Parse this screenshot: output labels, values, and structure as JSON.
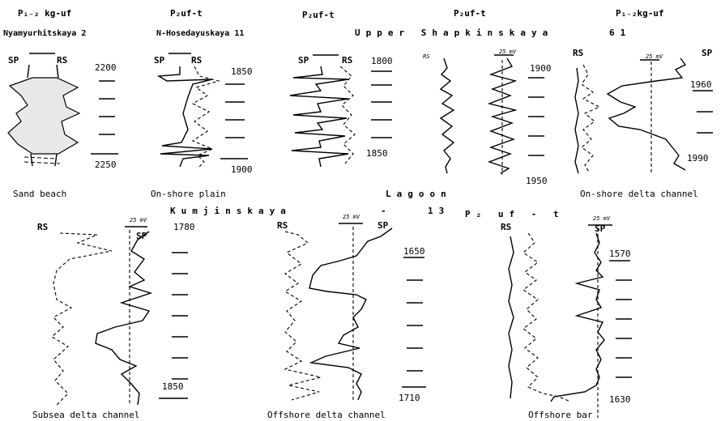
{
  "top_row": {
    "panels": [
      {
        "title": "P₁₋₂ kg-uf",
        "well": "Nyamyurhitskaya 2",
        "left_log": "SP",
        "right_log": "RS",
        "depth_top": "2200",
        "depth_bottom": "2250",
        "caption": "Sand beach"
      },
      {
        "title": "P₂uf-t",
        "well": "N-Hosedayuskaya 11",
        "left_log": "SP",
        "right_log": "RS",
        "depth_top": "1850",
        "depth_bottom": "1900",
        "caption": "On-shore plain"
      },
      {
        "title": "P₂uf-t",
        "well": "",
        "left_log": "SP",
        "right_log": "RS",
        "depth_top": "1800",
        "depth_bottom": "1850",
        "caption": ""
      },
      {
        "title": "P₂uf-t",
        "well": "",
        "left_log": "RS",
        "right_log": "25 mV",
        "depth_top": "1900",
        "depth_bottom": "1950",
        "caption": ""
      },
      {
        "title": "P₁₋₂kg-uf",
        "well": "",
        "left_log": "RS",
        "right_log": "SP",
        "scale": "25 mV",
        "depth_top": "1960",
        "depth_bottom": "1990",
        "caption": "On-shore delta channel"
      }
    ],
    "well_group_label": "Upper Shapkinskaya",
    "well_group_number": "61",
    "lagoon_caption": "Lagoon"
  },
  "separator": {
    "field": "Kumjinskaya",
    "dash": "-",
    "number": "13",
    "formation": "P₂ uf - t"
  },
  "bottom_row": {
    "panels": [
      {
        "left_log": "RS",
        "right_log": "SP",
        "scale": "25 mV",
        "depth_top": "1780",
        "depth_bottom": "1850",
        "caption": "Subsea delta channel"
      },
      {
        "left_log": "RS",
        "right_log": "SP",
        "scale": "25 mV",
        "depth_top": "1650",
        "depth_bottom": "1710",
        "caption": "Offshore delta channel"
      },
      {
        "left_log": "RS",
        "right_log": "SP",
        "scale": "25 mV",
        "depth_top": "1570",
        "depth_bottom": "1630",
        "caption": "Offshore bar"
      }
    ]
  }
}
